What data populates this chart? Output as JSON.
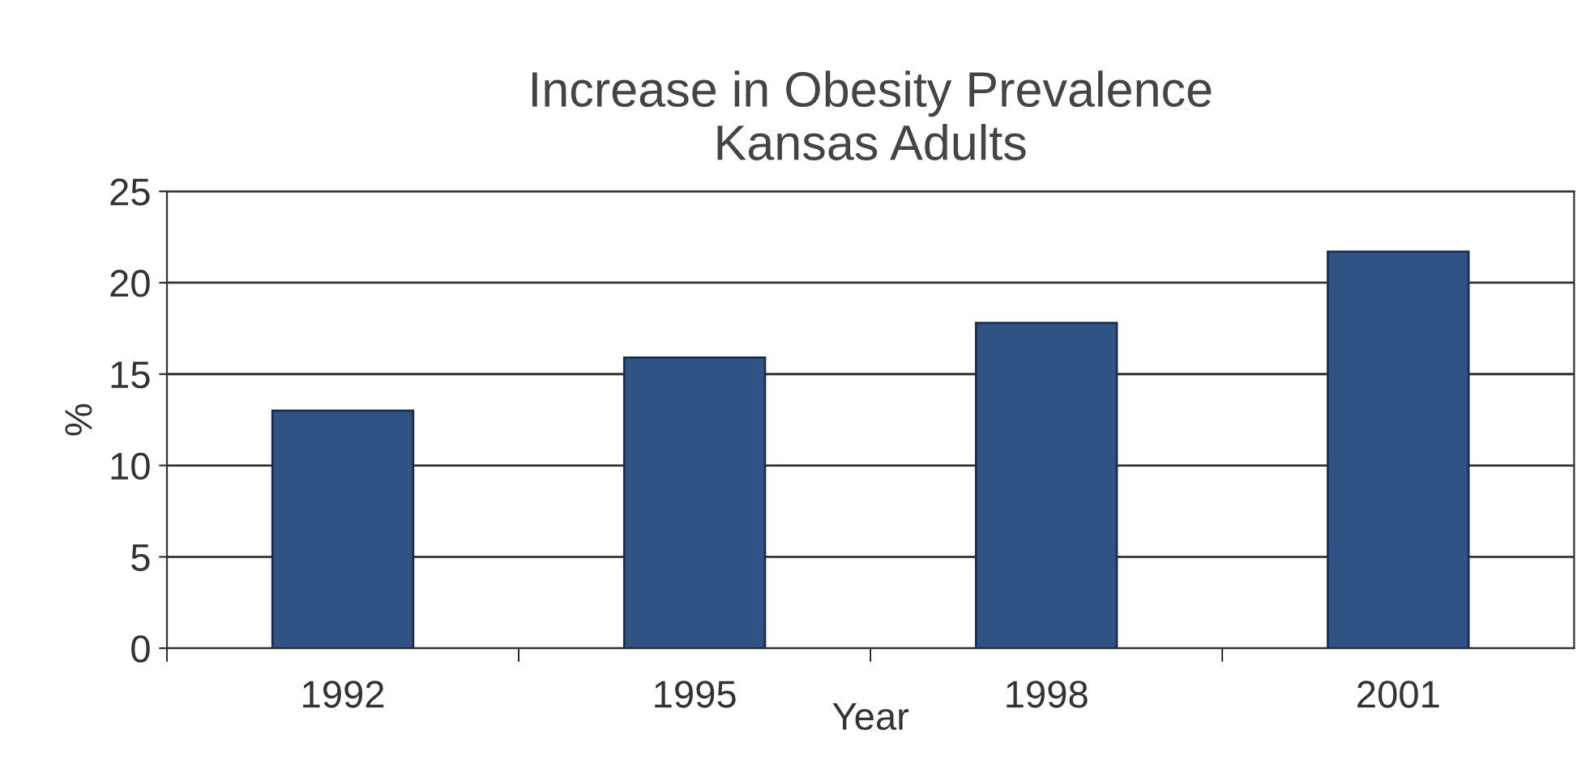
{
  "chart_data": {
    "type": "bar",
    "title": "Increase in Obesity Prevalence\nKansas Adults",
    "xlabel": "Year",
    "ylabel": "%",
    "categories": [
      "1992",
      "1995",
      "1998",
      "2001"
    ],
    "values": [
      13.0,
      15.9,
      17.8,
      21.7
    ],
    "color": "#2f5384",
    "ylim": [
      0,
      25
    ],
    "yticks": [
      0,
      5,
      10,
      15,
      20,
      25
    ],
    "grid": "y"
  }
}
